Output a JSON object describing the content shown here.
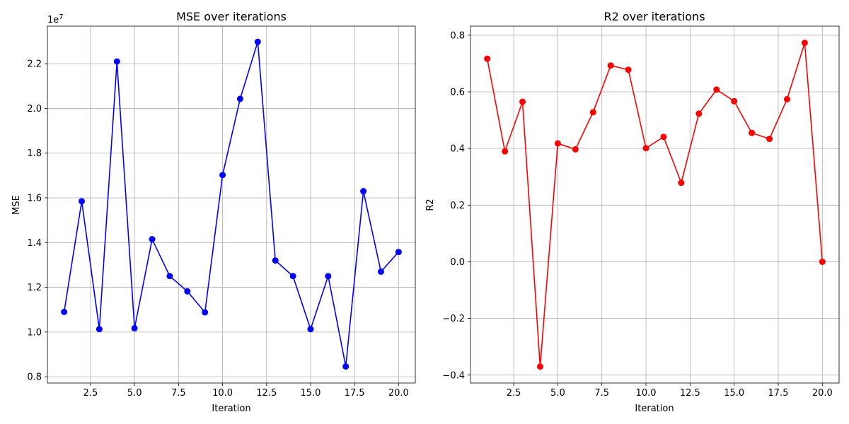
{
  "chart_data": [
    {
      "type": "line",
      "title": "MSE over iterations",
      "xlabel": "Iteration",
      "ylabel": "MSE",
      "offset_text": "1e7",
      "color": "#0000ff",
      "marker": "circle",
      "grid": true,
      "xlim": [
        0.05,
        20.95
      ],
      "ylim": [
        7.72,
        23.68
      ],
      "xticks": [
        2.5,
        5.0,
        7.5,
        10.0,
        12.5,
        15.0,
        17.5,
        20.0
      ],
      "xtick_labels": [
        "2.5",
        "5.0",
        "7.5",
        "10.0",
        "12.5",
        "15.0",
        "17.5",
        "20.0"
      ],
      "yticks": [
        8,
        10,
        12,
        14,
        16,
        18,
        20,
        22
      ],
      "ytick_labels": [
        "0.8",
        "1.0",
        "1.2",
        "1.4",
        "1.6",
        "1.8",
        "2.0",
        "2.2"
      ],
      "x": [
        1,
        2,
        3,
        4,
        5,
        6,
        7,
        8,
        9,
        10,
        11,
        12,
        13,
        14,
        15,
        16,
        17,
        18,
        19,
        20
      ],
      "y": [
        10.9,
        15.85,
        10.13,
        22.1,
        10.17,
        14.15,
        12.5,
        11.82,
        10.88,
        17.02,
        20.43,
        22.98,
        13.2,
        12.5,
        10.13,
        12.5,
        8.46,
        16.3,
        12.7,
        13.58
      ]
    },
    {
      "type": "line",
      "title": "R2 over iterations",
      "xlabel": "Iteration",
      "ylabel": "R2",
      "color": "#ff0000",
      "marker": "circle",
      "grid": true,
      "xlim": [
        0.05,
        20.95
      ],
      "ylim": [
        -0.428,
        0.832
      ],
      "xticks": [
        2.5,
        5.0,
        7.5,
        10.0,
        12.5,
        15.0,
        17.5,
        20.0
      ],
      "xtick_labels": [
        "2.5",
        "5.0",
        "7.5",
        "10.0",
        "12.5",
        "15.0",
        "17.5",
        "20.0"
      ],
      "yticks": [
        -0.4,
        -0.2,
        0.0,
        0.2,
        0.4,
        0.6,
        0.8
      ],
      "ytick_labels": [
        "−0.4",
        "−0.2",
        "0.0",
        "0.2",
        "0.4",
        "0.6",
        "0.8"
      ],
      "x": [
        1,
        2,
        3,
        4,
        5,
        6,
        7,
        8,
        9,
        10,
        11,
        12,
        13,
        14,
        15,
        16,
        17,
        18,
        19,
        20
      ],
      "y": [
        0.717,
        0.39,
        0.565,
        -0.37,
        0.418,
        0.397,
        0.528,
        0.693,
        0.678,
        0.401,
        0.441,
        0.279,
        0.523,
        0.608,
        0.567,
        0.455,
        0.434,
        0.574,
        0.773,
        0.0
      ]
    }
  ]
}
